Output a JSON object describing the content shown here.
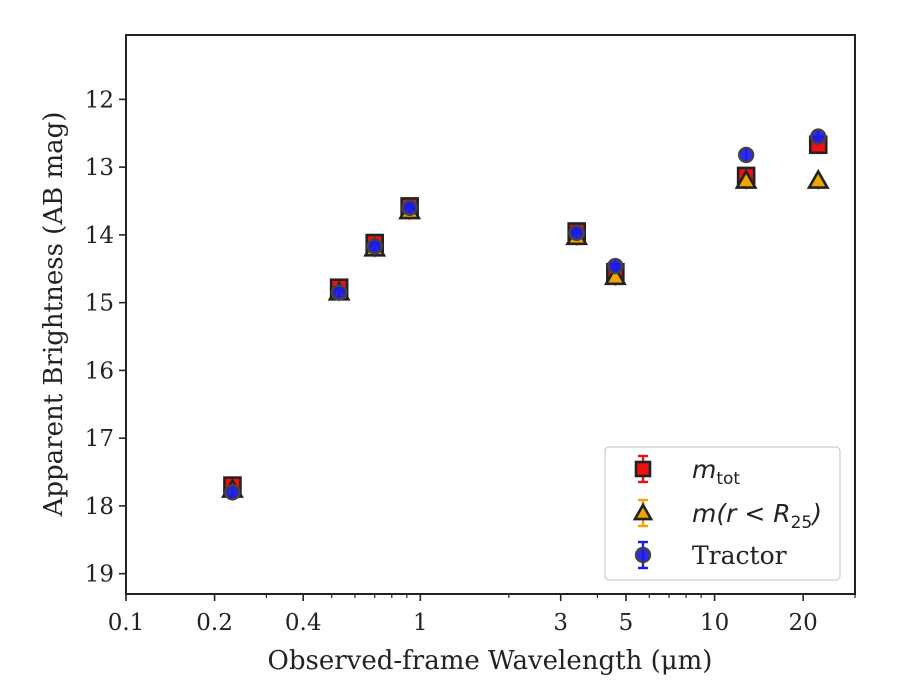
{
  "chart_data": {
    "type": "scatter",
    "xlabel": "Observed-frame Wavelength (μm)",
    "ylabel": "Apparent Brightness (AB mag)",
    "x_scale": "log",
    "xlim": [
      0.1,
      30
    ],
    "ylim": [
      19.3,
      11.05
    ],
    "y_inverted": true,
    "x_ticks": [
      0.1,
      0.2,
      0.4,
      1,
      3,
      5,
      10,
      20
    ],
    "x_tick_labels": [
      "0.1",
      "0.2",
      "0.4",
      "1",
      "3",
      "5",
      "10",
      "20"
    ],
    "y_ticks": [
      12,
      13,
      14,
      15,
      16,
      17,
      18,
      19
    ],
    "y_tick_labels": [
      "12",
      "13",
      "14",
      "15",
      "16",
      "17",
      "18",
      "19"
    ],
    "grid": false,
    "legend_position": "lower-right",
    "series": [
      {
        "name": "m_tot",
        "legend_label": "m",
        "legend_sub": "tot",
        "marker": "square",
        "color": "#ee1111",
        "x": [
          0.23,
          0.53,
          0.7,
          0.92,
          3.4,
          4.6,
          12.8,
          22.5
        ],
        "y": [
          17.7,
          14.78,
          14.12,
          13.58,
          13.95,
          14.55,
          13.13,
          12.67
        ]
      },
      {
        "name": "m(r < R_25)",
        "legend_label": "m(r < R",
        "legend_sub": "25",
        "legend_suffix": ")",
        "marker": "triangle",
        "color": "#f0a500",
        "x": [
          0.23,
          0.53,
          0.7,
          0.92,
          3.4,
          4.6,
          12.8,
          22.5
        ],
        "y": [
          17.76,
          14.85,
          14.2,
          13.65,
          14.03,
          14.62,
          13.2,
          13.2
        ]
      },
      {
        "name": "Tractor",
        "legend_label": "Tractor",
        "marker": "circle",
        "color": "#1a1aee",
        "x": [
          0.23,
          0.53,
          0.7,
          0.92,
          3.4,
          4.6,
          12.8,
          22.5
        ],
        "y": [
          17.8,
          14.85,
          14.17,
          13.6,
          13.97,
          14.46,
          12.82,
          12.55
        ]
      }
    ]
  }
}
